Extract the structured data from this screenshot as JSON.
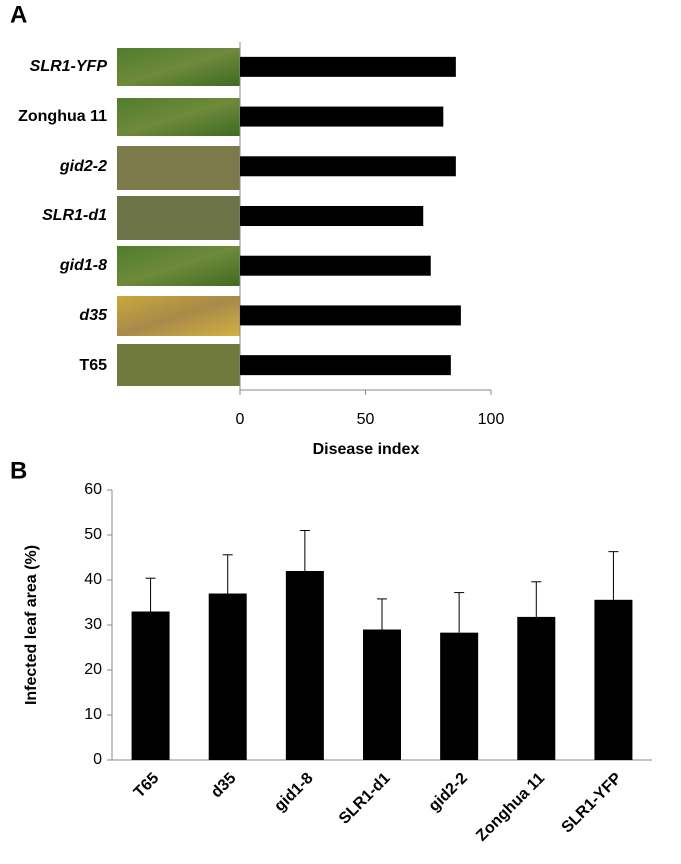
{
  "chart_data": [
    {
      "type": "hbar",
      "panel_label": "A",
      "categories": [
        "SLR1-YFP",
        "Zonghua 11",
        "gid2-2",
        "SLR1-d1",
        "gid1-8",
        "d35",
        "T65"
      ],
      "values": [
        86,
        81,
        86,
        73,
        76,
        88,
        84
      ],
      "color": "#000000",
      "xlim": [
        0,
        100
      ],
      "xticks": [
        0,
        50,
        100
      ],
      "xlabel": "Disease index"
    },
    {
      "type": "bar",
      "panel_label": "B",
      "categories": [
        "T65",
        "d35",
        "gid1-8",
        "SLR1-d1",
        "gid2-2",
        "Zonghua 11",
        "SLR1-YFP"
      ],
      "values": [
        33,
        37,
        42,
        29,
        28.3,
        31.8,
        35.6
      ],
      "errors": [
        7.4,
        8.6,
        9,
        6.8,
        8.9,
        7.8,
        10.7
      ],
      "color": "#000000",
      "ylim": [
        0,
        60
      ],
      "yticks": [
        0,
        10,
        20,
        30,
        40,
        50,
        60
      ],
      "ylabel": "Infected leaf area (%)"
    }
  ]
}
